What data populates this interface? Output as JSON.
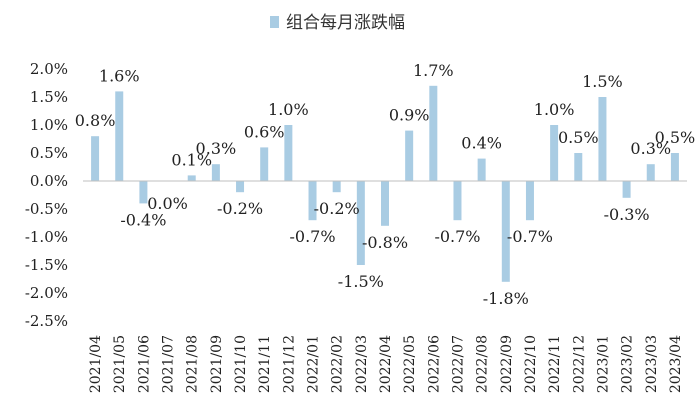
{
  "chart_data": {
    "type": "bar",
    "legend": "组合每月涨跌幅",
    "bar_color": "#a9cce3",
    "categories": [
      "2021/04",
      "2021/05",
      "2021/06",
      "2021/07",
      "2021/08",
      "2021/09",
      "2021/10",
      "2021/11",
      "2021/12",
      "2022/01",
      "2022/02",
      "2022/03",
      "2022/04",
      "2022/05",
      "2022/06",
      "2022/07",
      "2022/08",
      "2022/09",
      "2022/10",
      "2022/11",
      "2022/12",
      "2023/01",
      "2023/02",
      "2023/03",
      "2023/04"
    ],
    "values": [
      0.8,
      1.6,
      -0.4,
      0.0,
      0.1,
      0.3,
      -0.2,
      0.6,
      1.0,
      -0.7,
      -0.2,
      -1.5,
      -0.8,
      0.9,
      1.7,
      -0.7,
      0.4,
      -1.8,
      -0.7,
      1.0,
      0.5,
      1.5,
      -0.3,
      0.3,
      0.5
    ],
    "data_labels": [
      "0.8%",
      "1.6%",
      "-0.4%",
      "0.0%",
      "0.1%",
      "0.3%",
      "-0.2%",
      "0.6%",
      "1.0%",
      "-0.7%",
      "-0.2%",
      "-1.5%",
      "-0.8%",
      "0.9%",
      "1.7%",
      "-0.7%",
      "0.4%",
      "-1.8%",
      "-0.7%",
      "1.0%",
      "0.5%",
      "1.5%",
      "-0.3%",
      "0.3%",
      "0.5%"
    ],
    "y_ticks": [
      "2.0%",
      "1.5%",
      "1.0%",
      "0.5%",
      "0.0%",
      "-0.5%",
      "-1.0%",
      "-1.5%",
      "-2.0%",
      "-2.5%"
    ],
    "ylim": [
      -2.5,
      2.0
    ],
    "legend_position": "top"
  }
}
